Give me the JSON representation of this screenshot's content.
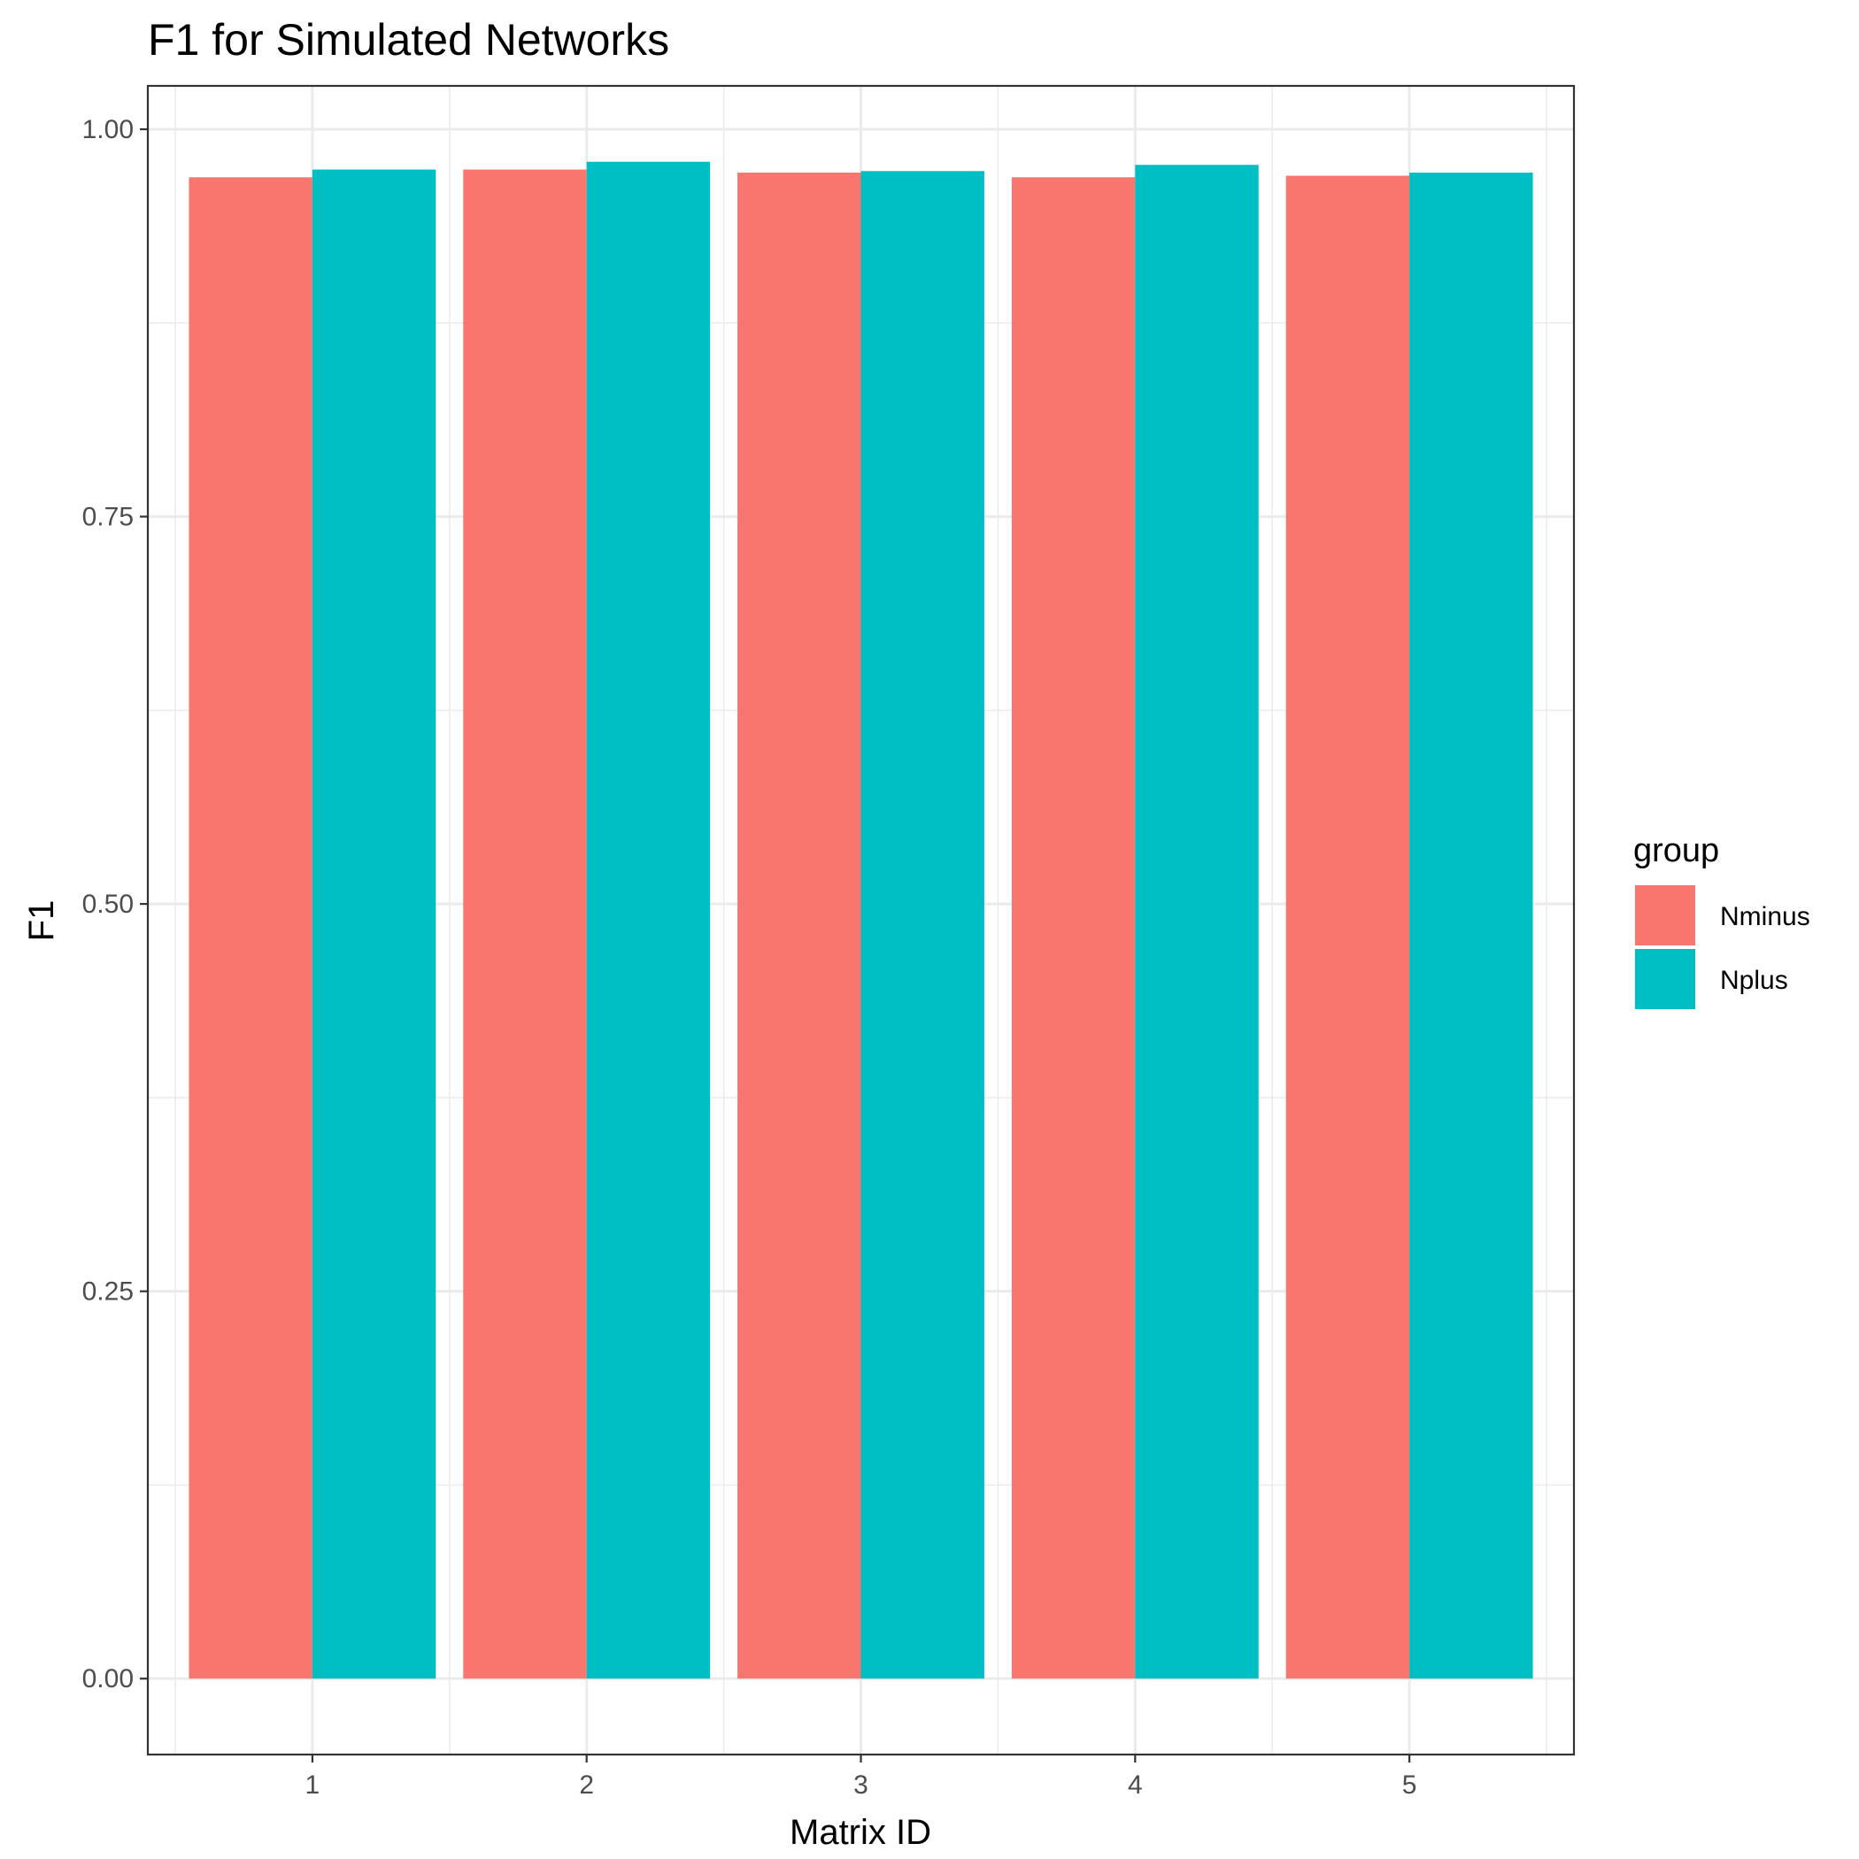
{
  "chart_data": {
    "type": "bar",
    "title": "F1 for Simulated Networks",
    "xlabel": "Matrix ID",
    "ylabel": "F1",
    "categories": [
      "1",
      "2",
      "3",
      "4",
      "5"
    ],
    "series": [
      {
        "name": "Nminus",
        "color": "#F8766D",
        "values": [
          0.969,
          0.974,
          0.972,
          0.969,
          0.97
        ]
      },
      {
        "name": "Nplus",
        "color": "#00BFC4",
        "values": [
          0.974,
          0.979,
          0.973,
          0.977,
          0.972
        ]
      }
    ],
    "ylim": [
      -0.049,
      1.028
    ],
    "yticks": [
      0.0,
      0.25,
      0.5,
      0.75,
      1.0
    ],
    "ytick_labels": [
      "0.00",
      "0.25",
      "0.50",
      "0.75",
      "1.00"
    ],
    "legend": {
      "title": "group",
      "position": "right"
    },
    "grid": true
  }
}
